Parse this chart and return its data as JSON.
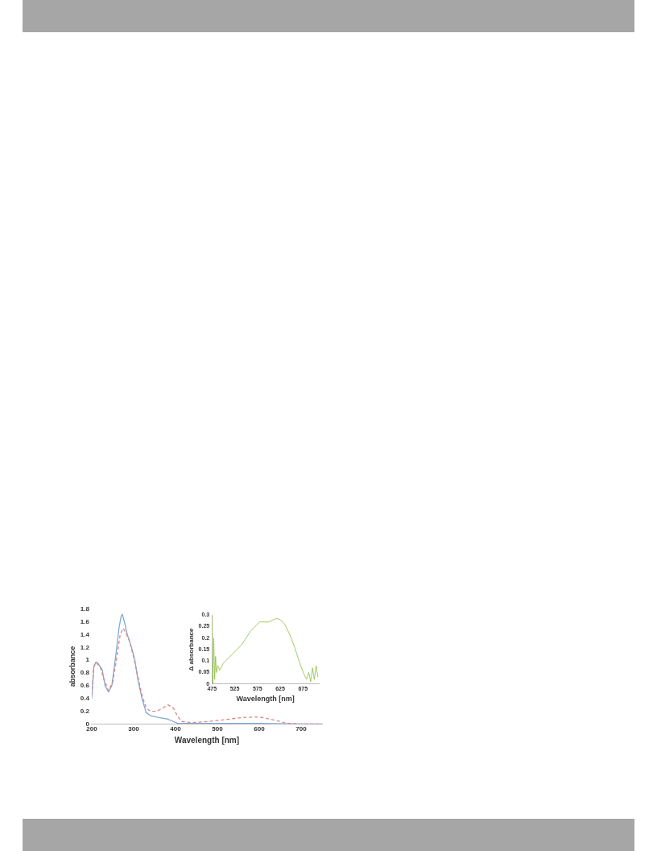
{
  "chart_data": [
    {
      "type": "line",
      "xlabel": "Wavelength [nm]",
      "ylabel": "absorbance",
      "xlim": [
        200,
        750
      ],
      "xticks": [
        200,
        300,
        400,
        500,
        600,
        700
      ],
      "ylim": [
        0,
        1.8
      ],
      "yticks": [
        0,
        0.2,
        0.4,
        0.6,
        0.8,
        1,
        1.2,
        1.4,
        1.6,
        1.8
      ],
      "grid": false,
      "marker": "none",
      "series": [
        {
          "color": "#7ea9d3",
          "line_style": "solid",
          "x": [
            200,
            205,
            210,
            215,
            225,
            232,
            240,
            248,
            258,
            265,
            270,
            273,
            278,
            285,
            295,
            303,
            310,
            320,
            330,
            340,
            360,
            380,
            395,
            405,
            420,
            500,
            600,
            700,
            750
          ],
          "values": [
            0.4,
            0.9,
            0.97,
            0.95,
            0.85,
            0.6,
            0.5,
            0.6,
            1.1,
            1.5,
            1.68,
            1.72,
            1.6,
            1.4,
            1.2,
            1.0,
            0.7,
            0.4,
            0.18,
            0.13,
            0.1,
            0.08,
            0.04,
            0.01,
            0.01,
            0.01,
            0.01,
            0,
            0
          ]
        },
        {
          "color": "#e08585",
          "line_style": "dashed",
          "x": [
            200,
            205,
            210,
            220,
            228,
            240,
            250,
            260,
            268,
            275,
            280,
            290,
            300,
            310,
            320,
            330,
            340,
            355,
            370,
            382,
            395,
            405,
            415,
            440,
            480,
            520,
            560,
            590,
            610,
            630,
            650,
            665,
            700,
            750
          ],
          "values": [
            0.45,
            0.9,
            0.96,
            0.9,
            0.72,
            0.52,
            0.65,
            1.05,
            1.4,
            1.5,
            1.45,
            1.3,
            1.05,
            0.75,
            0.45,
            0.25,
            0.2,
            0.2,
            0.25,
            0.3,
            0.25,
            0.12,
            0.04,
            0.02,
            0.04,
            0.07,
            0.1,
            0.11,
            0.1,
            0.07,
            0.04,
            0.01,
            0,
            0
          ]
        }
      ]
    },
    {
      "type": "line",
      "xlabel": "Wavelength [nm]",
      "ylabel": "Δ absorbance",
      "xlim": [
        475,
        710
      ],
      "xticks": [
        475,
        525,
        575,
        625,
        675
      ],
      "ylim": [
        0,
        0.3
      ],
      "yticks": [
        0,
        0.05,
        0.1,
        0.15,
        0.2,
        0.25,
        0.3
      ],
      "grid": false,
      "marker": "none",
      "series": [
        {
          "color": "#8dbb3c",
          "line_style": "solid",
          "x": [
            475,
            477,
            479,
            481,
            483,
            485,
            488,
            492,
            500,
            510,
            520,
            530,
            540,
            550,
            560,
            570,
            580,
            590,
            600,
            610,
            618,
            625,
            635,
            645,
            655,
            665,
            672,
            678,
            683,
            688,
            692,
            696,
            700,
            704,
            708
          ],
          "values": [
            0.3,
            0,
            0.2,
            0.02,
            0.12,
            0.05,
            0.08,
            0.06,
            0.09,
            0.11,
            0.13,
            0.15,
            0.17,
            0.2,
            0.23,
            0.25,
            0.27,
            0.27,
            0.27,
            0.28,
            0.285,
            0.28,
            0.26,
            0.22,
            0.17,
            0.11,
            0.07,
            0.04,
            0.02,
            0.05,
            0.01,
            0.07,
            0.02,
            0.08,
            0.03
          ]
        }
      ]
    }
  ]
}
